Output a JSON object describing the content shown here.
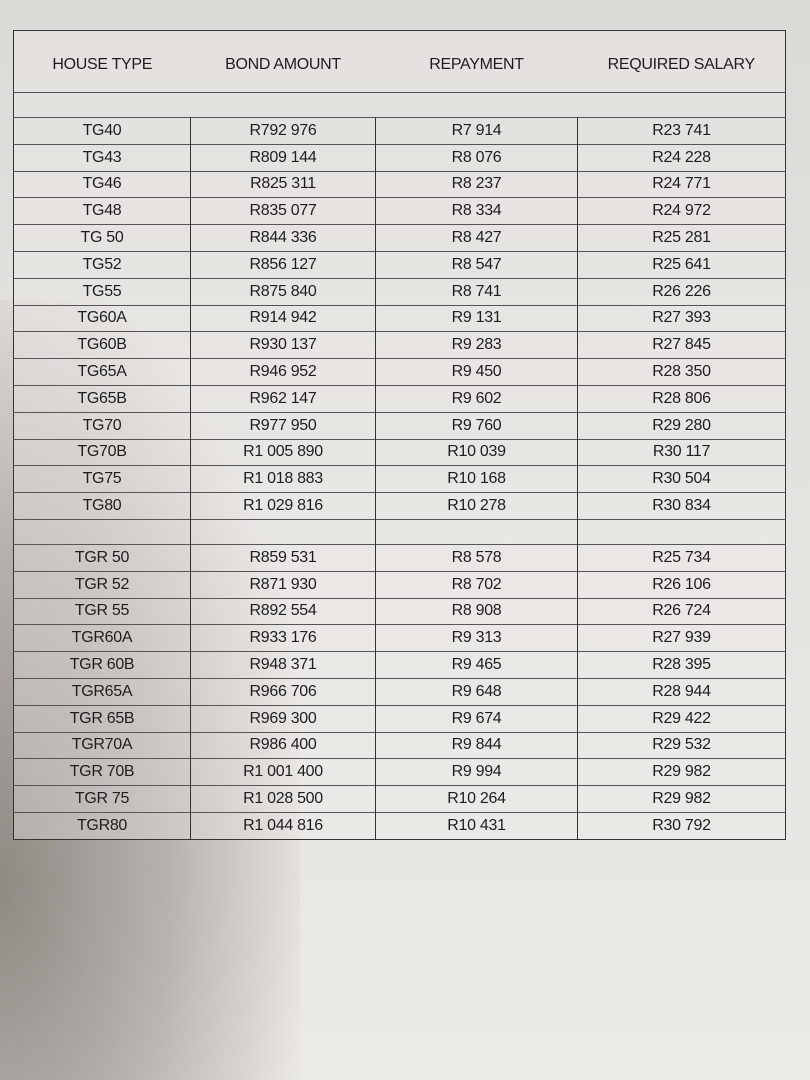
{
  "table": {
    "headers": [
      "HOUSE TYPE",
      "BOND AMOUNT",
      "REPAYMENT",
      "REQUIRED SALARY"
    ],
    "tg_rows": [
      [
        "TG40",
        "R792 976",
        "R7 914",
        "R23 741"
      ],
      [
        "TG43",
        "R809 144",
        "R8 076",
        "R24 228"
      ],
      [
        "TG46",
        "R825 311",
        "R8 237",
        "R24 771"
      ],
      [
        "TG48",
        "R835 077",
        "R8 334",
        "R24 972"
      ],
      [
        "TG 50",
        "R844 336",
        "R8 427",
        "R25 281"
      ],
      [
        "TG52",
        "R856 127",
        "R8 547",
        "R25 641"
      ],
      [
        "TG55",
        "R875 840",
        "R8 741",
        "R26 226"
      ],
      [
        "TG60A",
        "R914 942",
        "R9 131",
        "R27 393"
      ],
      [
        "TG60B",
        "R930 137",
        "R9 283",
        "R27 845"
      ],
      [
        "TG65A",
        "R946 952",
        "R9 450",
        "R28 350"
      ],
      [
        "TG65B",
        "R962 147",
        "R9 602",
        "R28 806"
      ],
      [
        "TG70",
        "R977 950",
        "R9 760",
        "R29 280"
      ],
      [
        "TG70B",
        "R1 005 890",
        "R10 039",
        "R30 117"
      ],
      [
        "TG75",
        "R1 018 883",
        "R10 168",
        "R30 504"
      ],
      [
        "TG80",
        "R1 029 816",
        "R10 278",
        "R30 834"
      ]
    ],
    "tgr_rows": [
      [
        "TGR 50",
        "R859 531",
        "R8 578",
        "R25 734"
      ],
      [
        "TGR 52",
        "R871 930",
        "R8 702",
        "R26 106"
      ],
      [
        "TGR 55",
        "R892 554",
        "R8 908",
        "R26 724"
      ],
      [
        "TGR60A",
        "R933 176",
        "R9 313",
        "R27 939"
      ],
      [
        "TGR 60B",
        "R948 371",
        "R9 465",
        "R28 395"
      ],
      [
        "TGR65A",
        "R966 706",
        "R9 648",
        "R28 944"
      ],
      [
        "TGR 65B",
        "R969 300",
        "R9 674",
        "R29 422"
      ],
      [
        "TGR70A",
        "R986 400",
        "R9 844",
        "R29 532"
      ],
      [
        "TGR 70B",
        "R1 001 400",
        "R9 994",
        "R29 982"
      ],
      [
        "TGR 75",
        "R1 028 500",
        "R10 264",
        "R29 982"
      ],
      [
        "TGR80",
        "R1 044 816",
        "R10 431",
        "R30 792"
      ]
    ]
  }
}
